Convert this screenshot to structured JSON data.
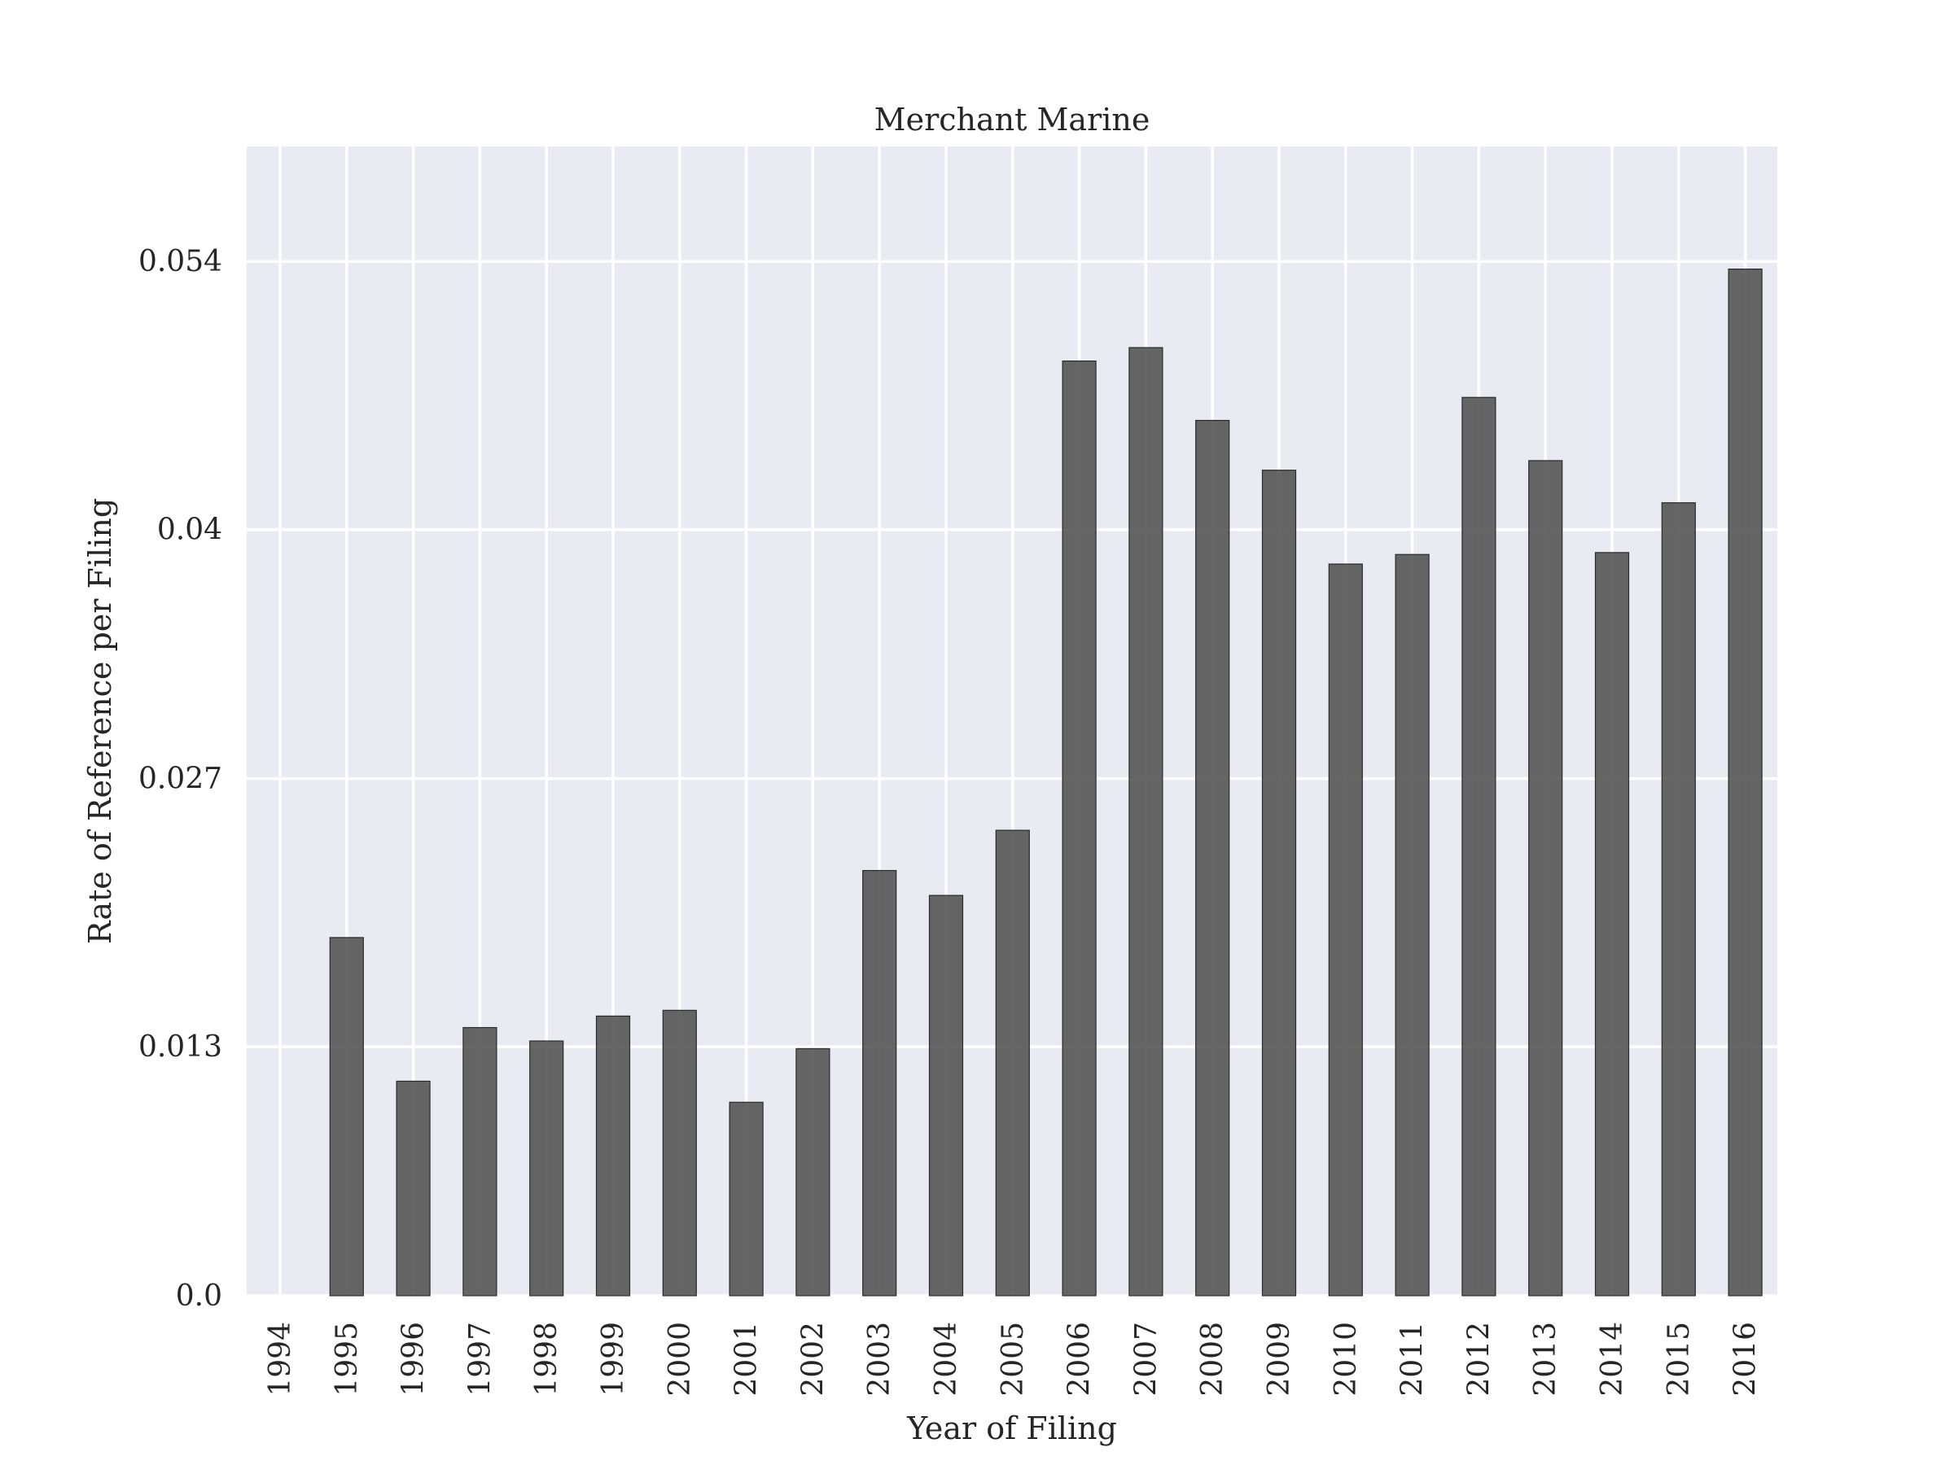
{
  "chart_data": {
    "type": "bar",
    "title": "Merchant Marine",
    "xlabel": "Year of Filing",
    "ylabel": "Rate of Reference per Filing",
    "categories": [
      "1994",
      "1995",
      "1996",
      "1997",
      "1998",
      "1999",
      "2000",
      "2001",
      "2002",
      "2003",
      "2004",
      "2005",
      "2006",
      "2007",
      "2008",
      "2009",
      "2010",
      "2011",
      "2012",
      "2013",
      "2014",
      "2015",
      "2016"
    ],
    "values": [
      0.0,
      0.0187,
      0.0112,
      0.014,
      0.0133,
      0.0146,
      0.0149,
      0.0101,
      0.0129,
      0.0222,
      0.0209,
      0.0243,
      0.0488,
      0.0495,
      0.0457,
      0.0431,
      0.0382,
      0.0387,
      0.0469,
      0.0436,
      0.0388,
      0.0414,
      0.0536
    ],
    "yticks": [
      0.0,
      0.013,
      0.027,
      0.04,
      0.054
    ],
    "ytick_labels": [
      "0.0",
      "0.013",
      "0.027",
      "0.04",
      "0.054"
    ],
    "ylim": [
      0,
      0.06
    ],
    "grid": true,
    "background": "#eaeaf2",
    "bar_color": "#555555"
  }
}
